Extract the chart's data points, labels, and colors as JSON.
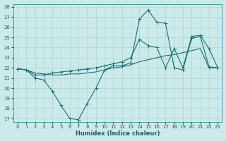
{
  "xlabel": "Humidex (Indice chaleur)",
  "bg_color": "#cceaea",
  "grid_color": "#b0d8d8",
  "line_color": "#1a7070",
  "xlim": [
    0,
    23
  ],
  "ylim": [
    17,
    28
  ],
  "xticks": [
    0,
    1,
    2,
    3,
    4,
    5,
    6,
    7,
    8,
    9,
    10,
    11,
    12,
    13,
    14,
    15,
    16,
    17,
    18,
    19,
    20,
    21,
    22,
    23
  ],
  "yticks": [
    17,
    18,
    19,
    20,
    21,
    22,
    23,
    24,
    25,
    26,
    27,
    28
  ],
  "line1_x": [
    0,
    1,
    2,
    3,
    4,
    5,
    6,
    7,
    8,
    9,
    10,
    11,
    12,
    13,
    14,
    15,
    16,
    17,
    18,
    19,
    20,
    21,
    22,
    23
  ],
  "line1_y": [
    21.9,
    21.8,
    21.5,
    21.4,
    21.3,
    21.3,
    21.4,
    21.4,
    21.5,
    21.6,
    21.8,
    22.0,
    22.1,
    22.3,
    22.6,
    22.8,
    23.0,
    23.2,
    23.3,
    23.5,
    23.7,
    23.9,
    22.0,
    22.0
  ],
  "line2_x": [
    0,
    1,
    2,
    3,
    4,
    5,
    6,
    7,
    8,
    9,
    10,
    11,
    12,
    13,
    14,
    15,
    16,
    17,
    18,
    19,
    20,
    21,
    22,
    23
  ],
  "line2_y": [
    21.9,
    21.8,
    21.0,
    20.8,
    19.7,
    18.3,
    17.0,
    16.9,
    18.5,
    20.0,
    21.8,
    22.2,
    22.2,
    22.5,
    26.8,
    27.7,
    26.5,
    26.4,
    22.0,
    21.8,
    24.9,
    25.1,
    22.1,
    22.0
  ],
  "line3_x": [
    0,
    1,
    2,
    3,
    4,
    5,
    6,
    7,
    8,
    9,
    10,
    11,
    12,
    13,
    14,
    15,
    16,
    17,
    18,
    19,
    20,
    21,
    22,
    23
  ],
  "line3_y": [
    21.9,
    21.8,
    21.3,
    21.3,
    21.5,
    21.6,
    21.7,
    21.8,
    21.9,
    22.0,
    22.2,
    22.4,
    22.6,
    23.0,
    24.8,
    24.2,
    24.0,
    22.0,
    23.9,
    22.0,
    25.1,
    25.2,
    23.9,
    22.0
  ]
}
